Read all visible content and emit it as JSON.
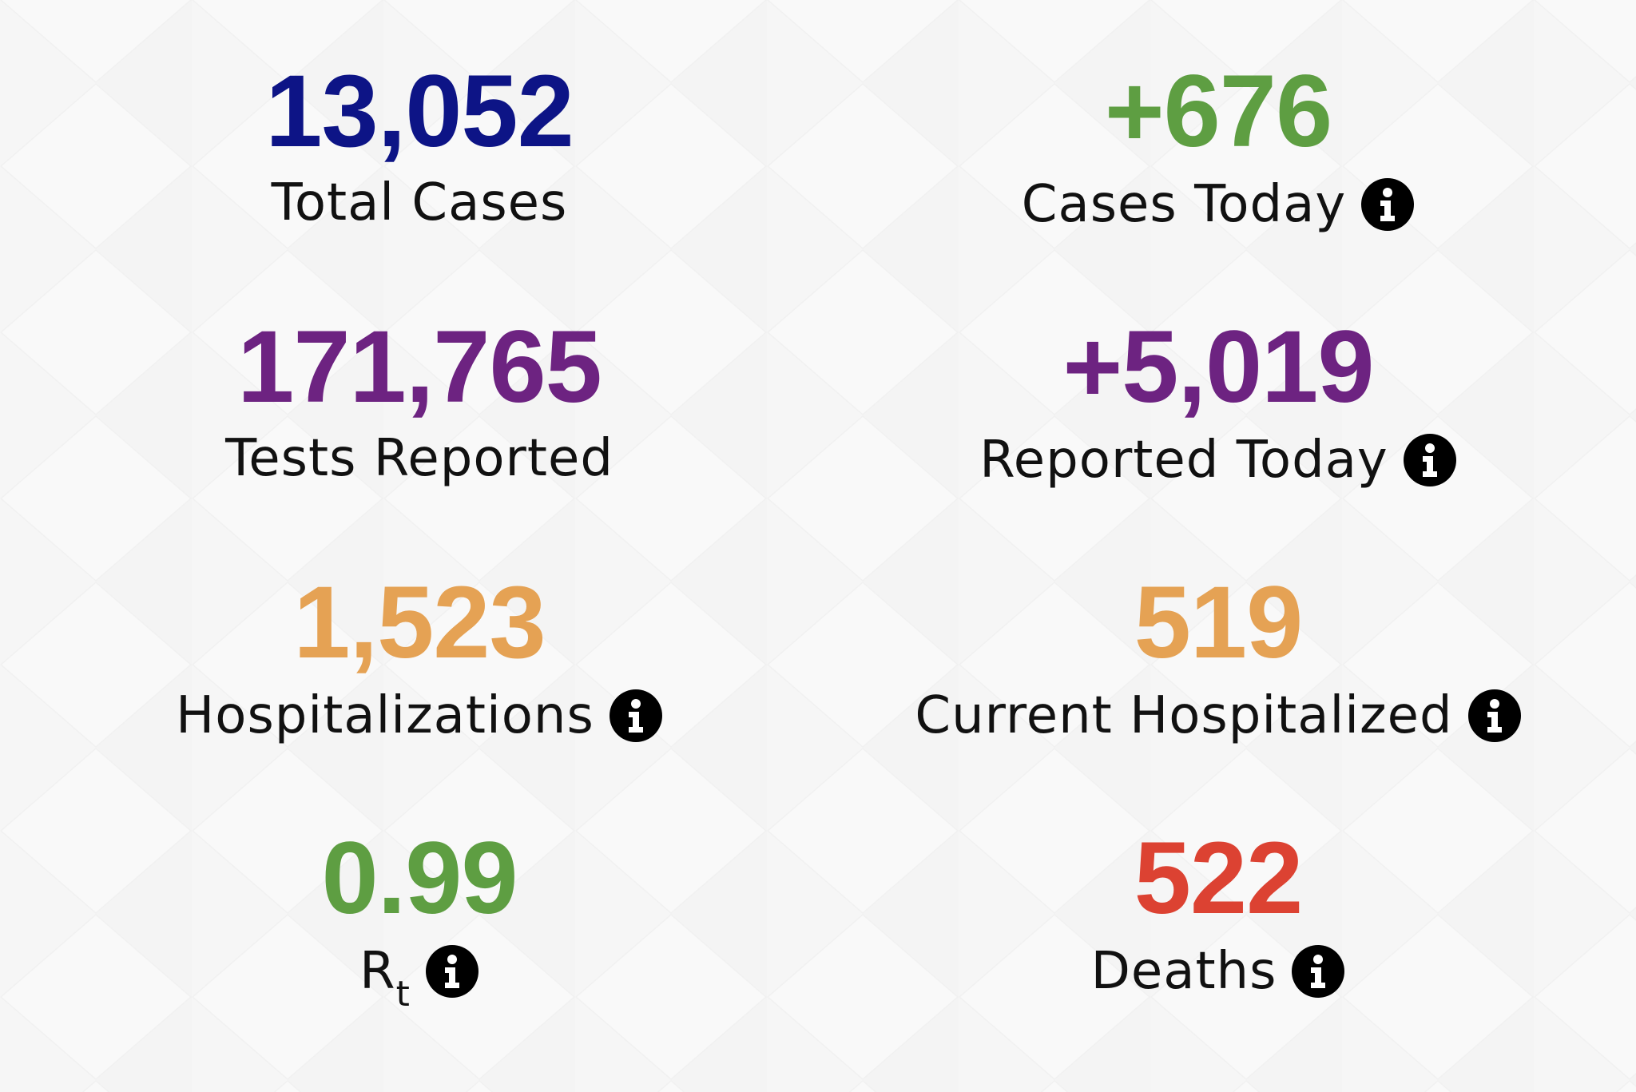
{
  "stats": {
    "total_cases": {
      "value": "13,052",
      "label": "Total Cases",
      "color": "#0d1486",
      "info": false
    },
    "cases_today": {
      "value": "+676",
      "label": "Cases Today",
      "color": "#5e9e42",
      "info": true
    },
    "tests_reported": {
      "value": "171,765",
      "label": "Tests Reported",
      "color": "#6d2381",
      "info": false
    },
    "reported_today": {
      "value": "+5,019",
      "label": "Reported Today",
      "color": "#6d2381",
      "info": true
    },
    "hospitalizations": {
      "value": "1,523",
      "label": "Hospitalizations",
      "color": "#e5a254",
      "info": true
    },
    "current_hospitalized": {
      "value": "519",
      "label": "Current Hospitalized",
      "color": "#e5a254",
      "info": true
    },
    "rt": {
      "value": "0.99",
      "label_main": "R",
      "label_sub": "t",
      "color": "#5e9e42",
      "info": true
    },
    "deaths": {
      "value": "522",
      "label": "Deaths",
      "color": "#dc4232",
      "info": true
    }
  },
  "icons": {
    "info": "info-circle-icon"
  },
  "colors": {
    "background": "#f9f9f9",
    "label_text": "#111111",
    "info_icon": "#000000"
  }
}
